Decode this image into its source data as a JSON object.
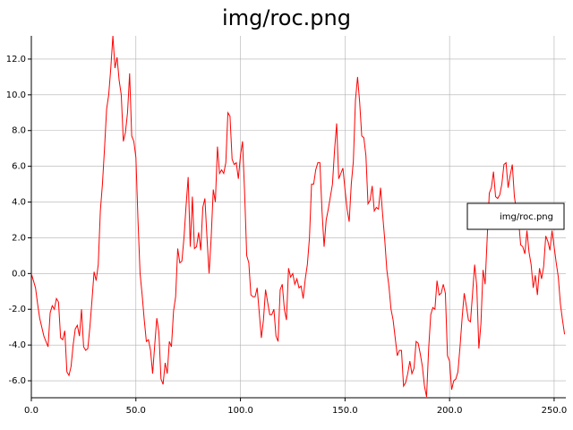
{
  "chart_data": {
    "type": "line",
    "title": "img/roc.png",
    "x": [
      0,
      1,
      2,
      3,
      4,
      5,
      6,
      7,
      8,
      9,
      10,
      11,
      12,
      13,
      14,
      15,
      16,
      17,
      18,
      19,
      20,
      21,
      22,
      23,
      24,
      25,
      26,
      27,
      28,
      29,
      30,
      31,
      32,
      33,
      34,
      35,
      36,
      37,
      38,
      39,
      40,
      41,
      42,
      43,
      44,
      45,
      46,
      47,
      48,
      49,
      50,
      51,
      52,
      53,
      54,
      55,
      56,
      57,
      58,
      59,
      60,
      61,
      62,
      63,
      64,
      65,
      66,
      67,
      68,
      69,
      70,
      71,
      72,
      73,
      74,
      75,
      76,
      77,
      78,
      79,
      80,
      81,
      82,
      83,
      84,
      85,
      86,
      87,
      88,
      89,
      90,
      91,
      92,
      93,
      94,
      95,
      96,
      97,
      98,
      99,
      100,
      101,
      102,
      103,
      104,
      105,
      106,
      107,
      108,
      109,
      110,
      111,
      112,
      113,
      114,
      115,
      116,
      117,
      118,
      119,
      120,
      121,
      122,
      123,
      124,
      125,
      126,
      127,
      128,
      129,
      130,
      131,
      132,
      133,
      134,
      135,
      136,
      137,
      138,
      139,
      140,
      141,
      142,
      143,
      144,
      145,
      146,
      147,
      148,
      149,
      150,
      151,
      152,
      153,
      154,
      155,
      156,
      157,
      158,
      159,
      160,
      161,
      162,
      163,
      164,
      165,
      166,
      167,
      168,
      169,
      170,
      171,
      172,
      173,
      174,
      175,
      176,
      177,
      178,
      179,
      180,
      181,
      182,
      183,
      184,
      185,
      186,
      187,
      188,
      189,
      190,
      191,
      192,
      193,
      194,
      195,
      196,
      197,
      198,
      199,
      200,
      201,
      202,
      203,
      204,
      205,
      206,
      207,
      208,
      209,
      210,
      211,
      212,
      213,
      214,
      215,
      216,
      217,
      218,
      219,
      220,
      221,
      222,
      223,
      224,
      225,
      226,
      227,
      228,
      229,
      230,
      231,
      232,
      233,
      234,
      235,
      236,
      237,
      238,
      239,
      240,
      241,
      242,
      243,
      244,
      245,
      246,
      247,
      248,
      249,
      250,
      251,
      252,
      253,
      254,
      255
    ],
    "series": [
      {
        "name": "img/roc.png",
        "color": "#ff0000",
        "values": [
          0.0,
          -0.4,
          -0.8,
          -1.7,
          -2.5,
          -3.0,
          -3.5,
          -3.8,
          -4.1,
          -2.2,
          -1.8,
          -2.0,
          -1.4,
          -1.6,
          -3.6,
          -3.7,
          -3.2,
          -5.5,
          -5.7,
          -5.2,
          -4.0,
          -3.1,
          -2.9,
          -3.5,
          -2.0,
          -4.1,
          -4.3,
          -4.2,
          -3.0,
          -1.5,
          0.1,
          -0.4,
          0.5,
          3.5,
          5.0,
          7.0,
          9.2,
          10.0,
          11.5,
          13.3,
          11.5,
          12.1,
          10.8,
          10.0,
          7.4,
          7.9,
          9.0,
          11.2,
          7.7,
          7.4,
          6.5,
          3.0,
          0.0,
          -1.2,
          -2.6,
          -3.8,
          -3.7,
          -4.3,
          -5.6,
          -4.0,
          -2.5,
          -3.3,
          -5.9,
          -6.2,
          -5.0,
          -5.6,
          -3.8,
          -4.1,
          -2.1,
          -1.3,
          1.4,
          0.6,
          0.7,
          2.0,
          3.8,
          5.4,
          1.5,
          4.3,
          1.4,
          1.5,
          2.3,
          1.3,
          3.7,
          4.2,
          2.0,
          0.0,
          2.0,
          4.7,
          4.0,
          7.1,
          5.6,
          5.8,
          5.6,
          6.2,
          9.0,
          8.8,
          6.4,
          6.1,
          6.2,
          5.3,
          6.6,
          7.4,
          4.5,
          1.0,
          0.6,
          -1.2,
          -1.3,
          -1.3,
          -0.8,
          -2.2,
          -3.6,
          -2.6,
          -0.9,
          -1.6,
          -2.3,
          -2.3,
          -2.0,
          -3.5,
          -3.8,
          -0.9,
          -0.6,
          -2.0,
          -2.6,
          0.3,
          -0.2,
          0.0,
          -0.6,
          -0.3,
          -0.8,
          -0.7,
          -1.4,
          -0.3,
          0.5,
          2.0,
          5.0,
          5.0,
          5.8,
          6.2,
          6.2,
          3.5,
          1.5,
          3.0,
          3.6,
          4.3,
          5.0,
          6.9,
          8.4,
          5.3,
          5.6,
          5.9,
          4.7,
          3.6,
          2.9,
          5.0,
          6.3,
          9.7,
          11.0,
          9.6,
          7.7,
          7.6,
          6.6,
          3.9,
          4.1,
          4.9,
          3.5,
          3.7,
          3.6,
          4.8,
          3.3,
          1.9,
          0.2,
          -0.7,
          -2.0,
          -2.6,
          -3.6,
          -4.6,
          -4.3,
          -4.3,
          -6.3,
          -6.1,
          -5.6,
          -4.9,
          -5.6,
          -5.3,
          -3.8,
          -3.9,
          -4.5,
          -5.2,
          -6.3,
          -6.9,
          -4.2,
          -2.3,
          -1.9,
          -2.0,
          -0.4,
          -1.2,
          -1.1,
          -0.6,
          -1.1,
          -4.6,
          -4.9,
          -6.5,
          -6.0,
          -5.9,
          -5.5,
          -4.1,
          -2.5,
          -1.1,
          -1.8,
          -2.6,
          -2.7,
          -1.1,
          0.5,
          -0.7,
          -4.2,
          -2.8,
          0.2,
          -0.6,
          2.0,
          4.5,
          4.8,
          5.7,
          4.3,
          4.2,
          4.4,
          5.0,
          6.1,
          6.2,
          4.8,
          5.5,
          6.1,
          4.3,
          3.5,
          3.0,
          1.6,
          1.5,
          1.1,
          2.4,
          1.2,
          0.5,
          -0.8,
          -0.1,
          -1.2,
          0.3,
          -0.3,
          0.4,
          2.1,
          1.8,
          1.3,
          2.4,
          1.5,
          0.6,
          -0.2,
          -1.7,
          -2.6,
          -3.4
        ]
      }
    ],
    "xlim": [
      0,
      255.6
    ],
    "ylim": [
      -6.95,
      13.3
    ],
    "xticks": [
      {
        "value": 0,
        "label": "0.0"
      },
      {
        "value": 50,
        "label": "50.0"
      },
      {
        "value": 100,
        "label": "100.0"
      },
      {
        "value": 150,
        "label": "150.0"
      },
      {
        "value": 200,
        "label": "200.0"
      },
      {
        "value": 250,
        "label": "250.0"
      }
    ],
    "yticks": [
      {
        "value": -6,
        "label": "-6.0"
      },
      {
        "value": -4,
        "label": "-4.0"
      },
      {
        "value": -2,
        "label": "-2.0"
      },
      {
        "value": 0,
        "label": "0.0"
      },
      {
        "value": 2,
        "label": "2.0"
      },
      {
        "value": 4,
        "label": "4.0"
      },
      {
        "value": 6,
        "label": "6.0"
      },
      {
        "value": 8,
        "label": "8.0"
      },
      {
        "value": 10,
        "label": "10.0"
      },
      {
        "value": 12,
        "label": "12.0"
      }
    ],
    "grid": true,
    "legend": "right"
  }
}
